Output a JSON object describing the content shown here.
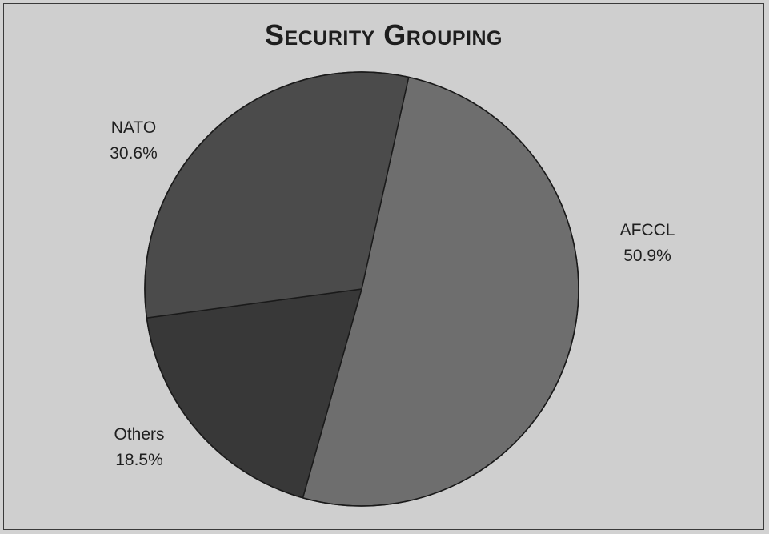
{
  "chart_data": {
    "type": "pie",
    "title": "Security Grouping",
    "slices": [
      {
        "label": "AFCCL",
        "value": 50.9,
        "value_label": "50.9%",
        "color": "#6e6e6e"
      },
      {
        "label": "Others",
        "value": 18.5,
        "value_label": "18.5%",
        "color": "#383838"
      },
      {
        "label": "NATO",
        "value": 30.6,
        "value_label": "30.6%",
        "color": "#4b4b4b"
      }
    ]
  }
}
